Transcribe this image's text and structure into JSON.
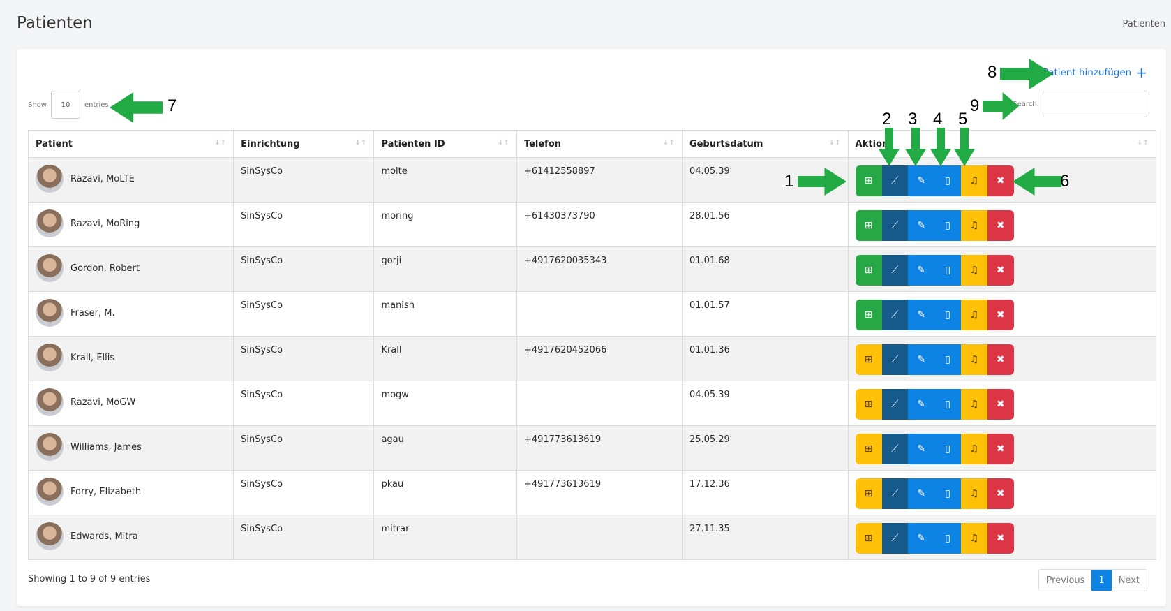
{
  "page": {
    "title": "Patienten",
    "breadcrumb": "Patienten"
  },
  "toolbar": {
    "add_label": "Patient hinzufügen",
    "show_label": "Show",
    "entries_label": "entries",
    "page_size": "10",
    "search_label": "Search:"
  },
  "table": {
    "headers": [
      "Patient",
      "Einrichtung",
      "Patienten ID",
      "Telefon",
      "Geburtsdatum",
      "Aktion"
    ],
    "rows": [
      {
        "name": "Razavi, MoLTE",
        "facility": "SinSysCo",
        "id": "molte",
        "phone": "+61412558897",
        "dob": "04.05.39",
        "first": "green"
      },
      {
        "name": "Razavi, MoRing",
        "facility": "SinSysCo",
        "id": "moring",
        "phone": "+61430373790",
        "dob": "28.01.56",
        "first": "green"
      },
      {
        "name": "Gordon, Robert",
        "facility": "SinSysCo",
        "id": "gorji",
        "phone": "+4917620035343",
        "dob": "01.01.68",
        "first": "green"
      },
      {
        "name": "Fraser, M.",
        "facility": "SinSysCo",
        "id": "manish",
        "phone": "",
        "dob": "01.01.57",
        "first": "green"
      },
      {
        "name": "Krall, Ellis",
        "facility": "SinSysCo",
        "id": "Krall",
        "phone": "+4917620452066",
        "dob": "01.01.36",
        "first": "amber"
      },
      {
        "name": "Razavi, MoGW",
        "facility": "SinSysCo",
        "id": "mogw",
        "phone": "",
        "dob": "04.05.39",
        "first": "amber"
      },
      {
        "name": "Williams, James",
        "facility": "SinSysCo",
        "id": "agau",
        "phone": "+491773613619",
        "dob": "25.05.29",
        "first": "amber"
      },
      {
        "name": "Forry, Elizabeth",
        "facility": "SinSysCo",
        "id": "pkau",
        "phone": "+491773613619",
        "dob": "17.12.36",
        "first": "amber"
      },
      {
        "name": "Edwards, Mitra",
        "facility": "SinSysCo",
        "id": "mitrar",
        "phone": "",
        "dob": "27.11.35",
        "first": "amber"
      }
    ]
  },
  "footer": {
    "info": "Showing 1 to 9 of 9 entries",
    "prev": "Previous",
    "page": "1",
    "next": "Next"
  },
  "annotations": [
    "1",
    "2",
    "3",
    "4",
    "5",
    "6",
    "7",
    "8",
    "9"
  ],
  "colors": {
    "green": "#28a745",
    "amber": "#ffc107",
    "navy": "#155a8a",
    "blue": "#0d84e3",
    "red": "#dc3545",
    "arrow": "#22aa44"
  }
}
